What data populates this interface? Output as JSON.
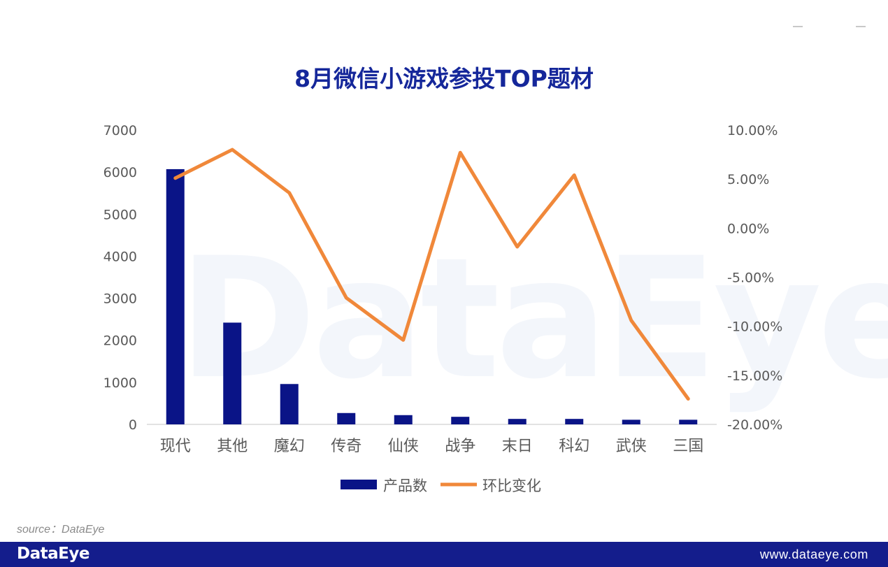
{
  "title": "8月微信小游戏参投TOP题材",
  "source": "source：DataEye",
  "footer": {
    "logo": "DataEye",
    "url": "www.dataeye.com"
  },
  "watermark": "DataEye",
  "colors": {
    "bar": "#0a1487",
    "line": "#f0883a",
    "title": "#15279a",
    "footer": "#141d8c"
  },
  "chart_data": {
    "type": "bar",
    "categories": [
      "现代",
      "其他",
      "魔幻",
      "传奇",
      "仙侠",
      "战争",
      "末日",
      "科幻",
      "武侠",
      "三国"
    ],
    "series": [
      {
        "name": "产品数",
        "type": "bar",
        "axis": "left",
        "values": [
          6070,
          2420,
          960,
          270,
          220,
          180,
          130,
          130,
          110,
          110
        ]
      },
      {
        "name": "环比变化",
        "type": "line",
        "axis": "right",
        "values": [
          5.1,
          8.0,
          3.6,
          -7.1,
          -11.4,
          7.7,
          -1.9,
          5.4,
          -9.4,
          -17.4
        ]
      }
    ],
    "y_left": {
      "min": 0,
      "max": 7000,
      "ticks": [
        0,
        1000,
        2000,
        3000,
        4000,
        5000,
        6000,
        7000
      ]
    },
    "y_right": {
      "min": -20,
      "max": 10,
      "ticks": [
        "-20.00%",
        "-15.00%",
        "-10.00%",
        "-5.00%",
        "0.00%",
        "5.00%",
        "10.00%"
      ]
    },
    "grid": false,
    "legend_position": "bottom"
  }
}
